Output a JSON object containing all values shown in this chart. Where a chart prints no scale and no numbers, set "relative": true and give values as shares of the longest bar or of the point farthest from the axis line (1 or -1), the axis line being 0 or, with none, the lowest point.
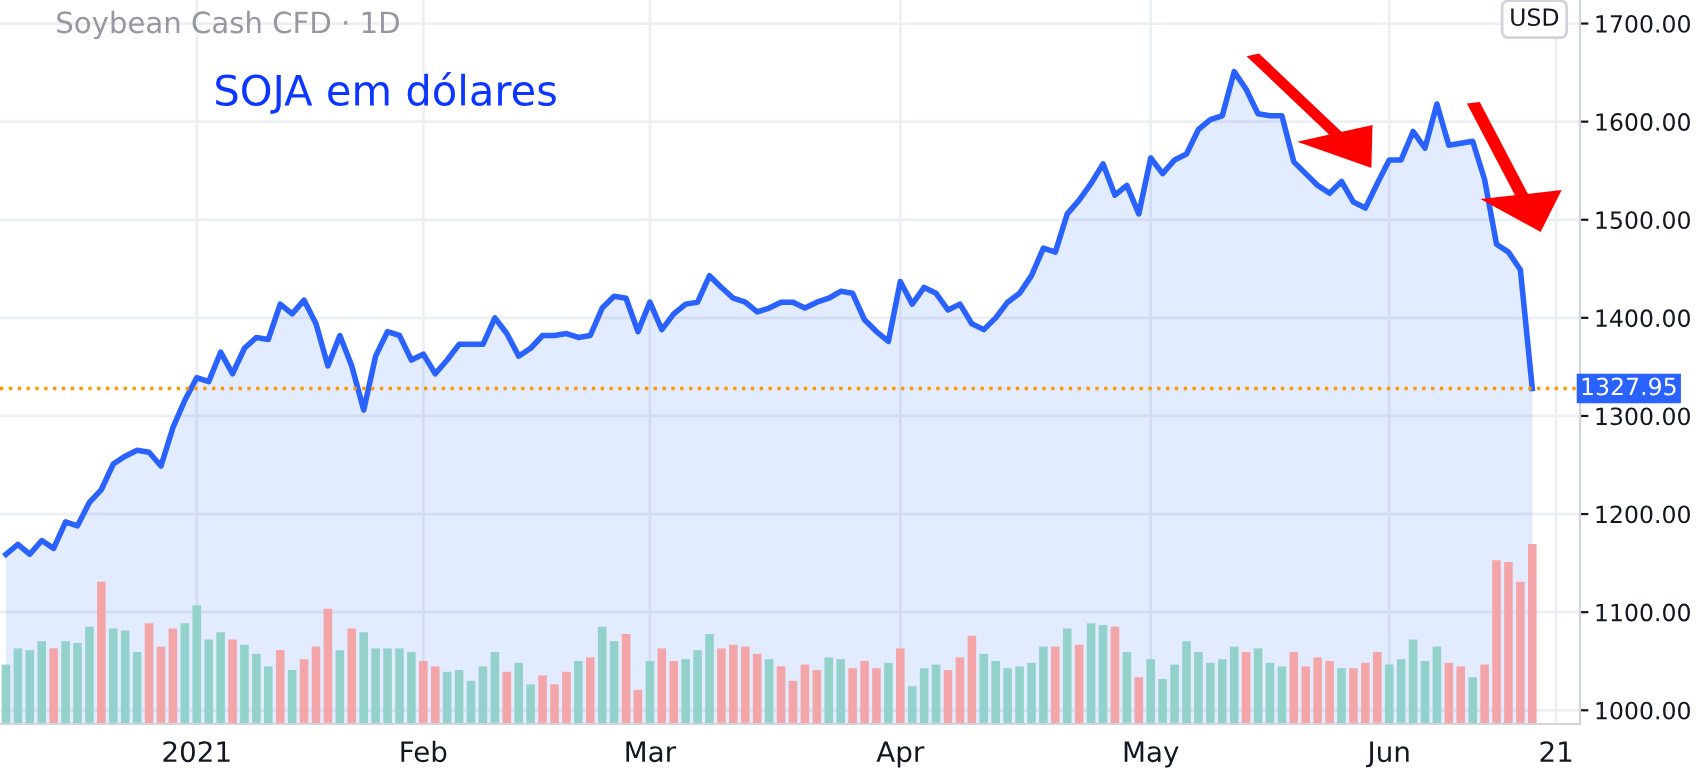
{
  "chart_data": [
    {
      "type": "area",
      "title": "Soybean Cash CFD · 1D",
      "subtitle": "SOJA em dólares",
      "ylabel": "USD",
      "categories": [
        null,
        null,
        null,
        null,
        null,
        null,
        null,
        null,
        null,
        null,
        null,
        null,
        null,
        null,
        null,
        null,
        "2021",
        null,
        null,
        null,
        null,
        null,
        null,
        null,
        null,
        null,
        null,
        null,
        null,
        null,
        null,
        null,
        null,
        null,
        null,
        "Feb",
        null,
        null,
        null,
        null,
        null,
        null,
        null,
        null,
        null,
        null,
        null,
        null,
        null,
        null,
        null,
        null,
        null,
        null,
        "Mar",
        null,
        null,
        null,
        null,
        null,
        null,
        null,
        null,
        null,
        null,
        null,
        null,
        null,
        null,
        null,
        null,
        null,
        null,
        null,
        null,
        "Apr",
        null,
        null,
        null,
        null,
        null,
        null,
        null,
        null,
        null,
        null,
        null,
        null,
        null,
        null,
        null,
        null,
        null,
        null,
        null,
        null,
        "May",
        null,
        null,
        null,
        null,
        null,
        null,
        null,
        null,
        null,
        null,
        null,
        null,
        null,
        null,
        null,
        null,
        null,
        null,
        null,
        "Jun",
        null,
        null,
        null,
        null,
        null,
        null,
        null,
        null,
        null,
        null,
        null,
        null,
        null,
        "21"
      ],
      "series": [
        {
          "color": "#2962ff",
          "values": [
            1159,
            1169,
            1159,
            1173,
            1165,
            1192,
            1188,
            1212,
            1225,
            1251,
            1259,
            1265,
            1263,
            1249,
            1288,
            1316,
            1339,
            1335,
            1365,
            1343,
            1369,
            1380,
            1378,
            1414,
            1404,
            1418,
            1394,
            1351,
            1382,
            1351,
            1306,
            1361,
            1386,
            1382,
            1357,
            1363,
            1343,
            1357,
            1373,
            1373,
            1373,
            1400,
            1384,
            1361,
            1369,
            1382,
            1382,
            1384,
            1380,
            1382,
            1410,
            1422,
            1420,
            1386,
            1416,
            1388,
            1404,
            1414,
            1416,
            1443,
            1431,
            1420,
            1416,
            1406,
            1410,
            1416,
            1416,
            1410,
            1416,
            1420,
            1427,
            1425,
            1398,
            1386,
            1376,
            1437,
            1414,
            1431,
            1425,
            1408,
            1414,
            1394,
            1388,
            1400,
            1416,
            1425,
            1443,
            1471,
            1467,
            1506,
            1520,
            1537,
            1557,
            1525,
            1535,
            1506,
            1563,
            1547,
            1561,
            1567,
            1592,
            1602,
            1606,
            1651,
            1633,
            1608,
            1606,
            1606,
            1559,
            1547,
            1535,
            1527,
            1539,
            1518,
            1512,
            1537,
            1561,
            1561,
            1590,
            1573,
            1618,
            1576,
            1578,
            1580,
            1541,
            1475,
            1467,
            1449,
            1327.95,
            null,
            null
          ]
        }
      ],
      "ylim": [
        986,
        1724
      ],
      "yticks": [
        {
          "value": 1000,
          "label": "1000.00"
        },
        {
          "value": 1100,
          "label": "1100.00"
        },
        {
          "value": 1200,
          "label": "1200.00"
        },
        {
          "value": 1300,
          "label": "1300.00"
        },
        {
          "value": 1400,
          "label": "1400.00"
        },
        {
          "value": 1500,
          "label": "1500.00"
        },
        {
          "value": 1600,
          "label": "1600.00"
        },
        {
          "value": 1700,
          "label": "1700.00"
        }
      ],
      "ref_lines": [
        {
          "axis": "y",
          "value": 1327.95,
          "label": "1327.95",
          "color": "#ff9800",
          "line_style": "dotted"
        }
      ],
      "grid": true
    },
    {
      "type": "bar",
      "relative": true,
      "categories": [
        null,
        null,
        null,
        null,
        null,
        null,
        null,
        null,
        null,
        null,
        null,
        null,
        null,
        null,
        null,
        null,
        null,
        null,
        null,
        null,
        null,
        null,
        null,
        null,
        null,
        null,
        null,
        null,
        null,
        null,
        null,
        null,
        null,
        null,
        null,
        null,
        null,
        null,
        null,
        null,
        null,
        null,
        null,
        null,
        null,
        null,
        null,
        null,
        null,
        null,
        null,
        null,
        null,
        null,
        null,
        null,
        null,
        null,
        null,
        null,
        null,
        null,
        null,
        null,
        null,
        null,
        null,
        null,
        null,
        null,
        null,
        null,
        null,
        null,
        null,
        null,
        null,
        null,
        null,
        null,
        null,
        null,
        null,
        null,
        null,
        null,
        null,
        null,
        null,
        null,
        null,
        null,
        null,
        null,
        null,
        null,
        null,
        null,
        null,
        null,
        null,
        null,
        null,
        null,
        null,
        null,
        null,
        null,
        null,
        null,
        null,
        null,
        null,
        null,
        null,
        null,
        null,
        null,
        null,
        null,
        null,
        null,
        null,
        null,
        null,
        null,
        null,
        null,
        null,
        null,
        null
      ],
      "values": [
        0.33,
        0.42,
        0.41,
        0.46,
        0.42,
        0.46,
        0.45,
        0.54,
        0.79,
        0.53,
        0.52,
        0.4,
        0.56,
        0.43,
        0.53,
        0.56,
        0.66,
        0.47,
        0.51,
        0.47,
        0.44,
        0.39,
        0.32,
        0.41,
        0.3,
        0.36,
        0.43,
        0.64,
        0.41,
        0.53,
        0.51,
        0.42,
        0.42,
        0.42,
        0.4,
        0.35,
        0.32,
        0.29,
        0.3,
        0.24,
        0.32,
        0.4,
        0.29,
        0.34,
        0.22,
        0.27,
        0.22,
        0.29,
        0.35,
        0.37,
        0.54,
        0.46,
        0.5,
        0.19,
        0.35,
        0.42,
        0.35,
        0.36,
        0.41,
        0.5,
        0.42,
        0.44,
        0.43,
        0.39,
        0.36,
        0.32,
        0.24,
        0.33,
        0.3,
        0.37,
        0.36,
        0.31,
        0.35,
        0.31,
        0.34,
        0.42,
        0.21,
        0.31,
        0.33,
        0.3,
        0.37,
        0.49,
        0.39,
        0.35,
        0.31,
        0.32,
        0.34,
        0.43,
        0.43,
        0.53,
        0.44,
        0.56,
        0.55,
        0.54,
        0.4,
        0.26,
        0.36,
        0.25,
        0.33,
        0.46,
        0.4,
        0.34,
        0.36,
        0.43,
        0.4,
        0.42,
        0.34,
        0.32,
        0.4,
        0.32,
        0.37,
        0.35,
        0.31,
        0.31,
        0.34,
        0.4,
        0.33,
        0.36,
        0.47,
        0.35,
        0.43,
        0.34,
        0.32,
        0.26,
        0.33,
        0.91,
        0.9,
        0.79,
        1,
        null,
        null
      ],
      "colors": [
        "#92d2ca",
        "#92d2ca",
        "#92d2ca",
        "#92d2ca",
        "#f4a5a8",
        "#92d2ca",
        "#92d2ca",
        "#92d2ca",
        "#f4a5a8",
        "#92d2ca",
        "#92d2ca",
        "#92d2ca",
        "#f4a5a8",
        "#f4a5a8",
        "#f4a5a8",
        "#92d2ca",
        "#92d2ca",
        "#92d2ca",
        "#92d2ca",
        "#f4a5a8",
        "#92d2ca",
        "#92d2ca",
        "#92d2ca",
        "#f4a5a8",
        "#92d2ca",
        "#f4a5a8",
        "#f4a5a8",
        "#f4a5a8",
        "#92d2ca",
        "#f4a5a8",
        "#92d2ca",
        "#92d2ca",
        "#92d2ca",
        "#92d2ca",
        "#92d2ca",
        "#f4a5a8",
        "#f4a5a8",
        "#92d2ca",
        "#92d2ca",
        "#92d2ca",
        "#92d2ca",
        "#92d2ca",
        "#f4a5a8",
        "#92d2ca",
        "#92d2ca",
        "#f4a5a8",
        "#f4a5a8",
        "#f4a5a8",
        "#92d2ca",
        "#f4a5a8",
        "#92d2ca",
        "#92d2ca",
        "#f4a5a8",
        "#f4a5a8",
        "#92d2ca",
        "#f4a5a8",
        "#f4a5a8",
        "#92d2ca",
        "#92d2ca",
        "#92d2ca",
        "#f4a5a8",
        "#f4a5a8",
        "#f4a5a8",
        "#f4a5a8",
        "#92d2ca",
        "#f4a5a8",
        "#f4a5a8",
        "#f4a5a8",
        "#f4a5a8",
        "#92d2ca",
        "#92d2ca",
        "#f4a5a8",
        "#f4a5a8",
        "#f4a5a8",
        "#92d2ca",
        "#f4a5a8",
        "#92d2ca",
        "#92d2ca",
        "#92d2ca",
        "#f4a5a8",
        "#f4a5a8",
        "#f4a5a8",
        "#92d2ca",
        "#92d2ca",
        "#92d2ca",
        "#92d2ca",
        "#92d2ca",
        "#92d2ca",
        "#f4a5a8",
        "#92d2ca",
        "#f4a5a8",
        "#92d2ca",
        "#92d2ca",
        "#f4a5a8",
        "#92d2ca",
        "#f4a5a8",
        "#92d2ca",
        "#92d2ca",
        "#92d2ca",
        "#92d2ca",
        "#92d2ca",
        "#92d2ca",
        "#92d2ca",
        "#92d2ca",
        "#f4a5a8",
        "#92d2ca",
        "#92d2ca",
        "#92d2ca",
        "#f4a5a8",
        "#f4a5a8",
        "#f4a5a8",
        "#f4a5a8",
        "#92d2ca",
        "#f4a5a8",
        "#f4a5a8",
        "#f4a5a8",
        "#92d2ca",
        "#92d2ca",
        "#92d2ca",
        "#92d2ca",
        "#92d2ca",
        "#f4a5a8",
        "#f4a5a8",
        "#92d2ca",
        "#f4a5a8",
        "#f4a5a8",
        "#f4a5a8",
        "#f4a5a8",
        "#f4a5a8",
        "#f4a5a8",
        "#f4a5a8"
      ]
    }
  ]
}
